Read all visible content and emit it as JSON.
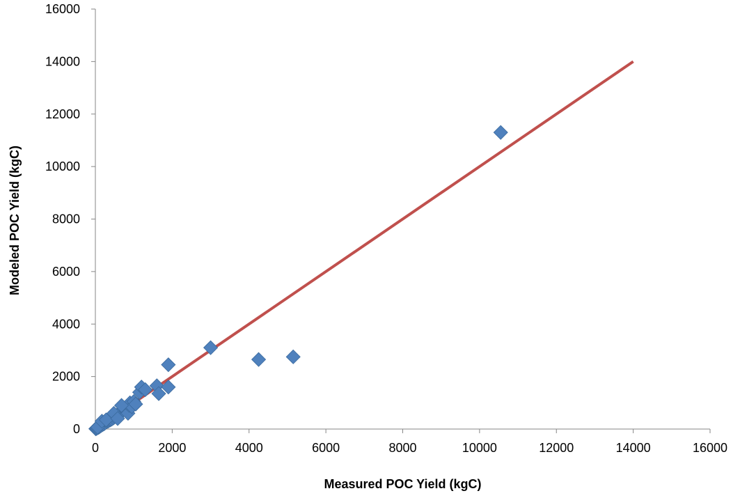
{
  "chart_data": {
    "type": "scatter",
    "title": "",
    "xlabel": "Measured POC Yield (kgC)",
    "ylabel": "Modeled POC Yield (kgC)",
    "xlim": [
      0,
      16000
    ],
    "ylim": [
      0,
      16000
    ],
    "x_ticks": [
      0,
      2000,
      4000,
      6000,
      8000,
      10000,
      12000,
      14000,
      16000
    ],
    "y_ticks": [
      0,
      2000,
      4000,
      6000,
      8000,
      10000,
      12000,
      14000,
      16000
    ],
    "grid": false,
    "legend": "none",
    "series": [
      {
        "marker": "diamond",
        "color": "#4F81BD",
        "points": [
          [
            10,
            10
          ],
          [
            30,
            20
          ],
          [
            50,
            40
          ],
          [
            80,
            60
          ],
          [
            100,
            80
          ],
          [
            120,
            100
          ],
          [
            150,
            130
          ],
          [
            180,
            160
          ],
          [
            200,
            180
          ],
          [
            230,
            200
          ],
          [
            260,
            240
          ],
          [
            300,
            280
          ],
          [
            330,
            300
          ],
          [
            350,
            320
          ],
          [
            380,
            340
          ],
          [
            400,
            360
          ],
          [
            430,
            380
          ],
          [
            470,
            420
          ],
          [
            500,
            460
          ],
          [
            550,
            520
          ],
          [
            600,
            550
          ],
          [
            620,
            600
          ],
          [
            650,
            630
          ],
          [
            700,
            680
          ],
          [
            720,
            720
          ],
          [
            750,
            800
          ],
          [
            800,
            700
          ],
          [
            850,
            600
          ],
          [
            880,
            900
          ],
          [
            900,
            1000
          ],
          [
            950,
            850
          ],
          [
            1000,
            1050
          ],
          [
            1050,
            950
          ],
          [
            1150,
            1400
          ],
          [
            1200,
            1600
          ],
          [
            1300,
            1500
          ],
          [
            1600,
            1650
          ],
          [
            1650,
            1350
          ],
          [
            1900,
            1600
          ],
          [
            1900,
            2450
          ],
          [
            3000,
            3100
          ],
          [
            4250,
            2650
          ],
          [
            5150,
            2750
          ],
          [
            10550,
            11300
          ],
          [
            60,
            70
          ],
          [
            170,
            300
          ],
          [
            280,
            350
          ],
          [
            480,
            600
          ],
          [
            580,
            400
          ],
          [
            680,
            900
          ]
        ]
      }
    ],
    "line": {
      "color": "#C0504D",
      "from": [
        0,
        0
      ],
      "to": [
        14000,
        14000
      ]
    }
  }
}
